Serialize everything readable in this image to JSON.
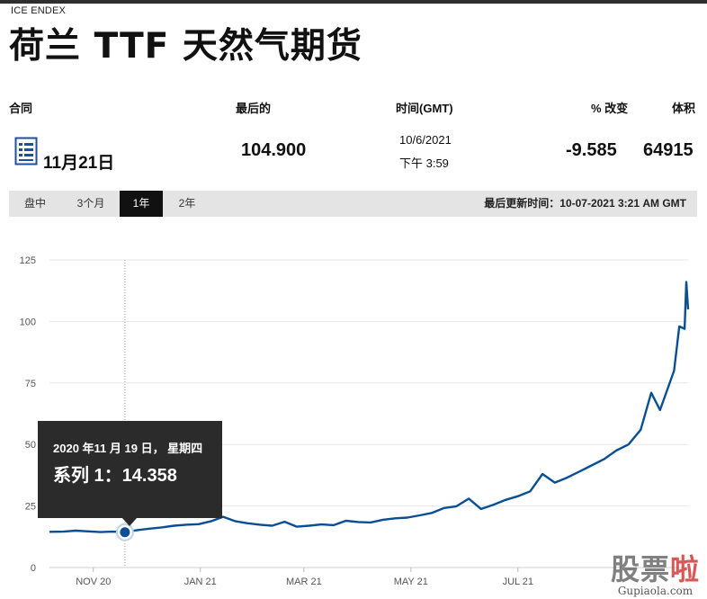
{
  "header": {
    "exchange": "ICE ENDEX",
    "title": "荷兰 TTF 天然气期货"
  },
  "table": {
    "columns": [
      "合同",
      "最后的",
      "时间(GMT)",
      "% 改变",
      "体积"
    ],
    "row": {
      "contract": "11月21日",
      "last": "104.900",
      "time_date": "10/6/2021",
      "time_clock": "下午 3:59",
      "change_pct": "-9.585",
      "volume": "64915"
    }
  },
  "tabs": {
    "items": [
      "盘中",
      "3个月",
      "1年",
      "2年"
    ],
    "active": "1年",
    "last_updated": "最后更新时间：10-07-2021 3:21 AM GMT"
  },
  "tooltip": {
    "date": "2020 年11 月 19 日， 星期四",
    "series": "系列 1：14.358"
  },
  "watermark": {
    "logo_part1": "股票",
    "logo_part2": "啦",
    "url": "Gupiaola.com"
  },
  "colors": {
    "line": "#0a4f94",
    "active_tab": "#111111",
    "tab_bar": "#e4e4e4",
    "tooltip_bg": "#2b2b2b"
  },
  "chart_data": {
    "type": "line",
    "ylim": [
      0,
      125
    ],
    "y_ticks": [
      "0",
      "25",
      "50",
      "75",
      "100",
      "125"
    ],
    "x_ticks": [
      "NOV 20",
      "JAN 21",
      "MAR 21",
      "MAY 21",
      "JUL 21"
    ],
    "x_tick_dates": [
      "2020-11-01",
      "2021-01-01",
      "2021-03-01",
      "2021-05-01",
      "2021-07-01"
    ],
    "x_range": [
      "2020-10-07",
      "2021-10-06"
    ],
    "highlight": {
      "x": "2020-11-19",
      "y": 14.358
    },
    "series": [
      {
        "x": [
          "2020-10-07",
          "2020-10-15",
          "2020-10-22",
          "2020-10-29",
          "2020-11-05",
          "2020-11-12",
          "2020-11-19",
          "2020-11-26",
          "2020-12-03",
          "2020-12-10",
          "2020-12-17",
          "2020-12-24",
          "2020-12-31",
          "2021-01-07",
          "2021-01-14",
          "2021-01-21",
          "2021-01-28",
          "2021-02-04",
          "2021-02-11",
          "2021-02-18",
          "2021-02-25",
          "2021-03-04",
          "2021-03-11",
          "2021-03-18",
          "2021-03-25",
          "2021-04-01",
          "2021-04-08",
          "2021-04-15",
          "2021-04-22",
          "2021-04-29",
          "2021-05-06",
          "2021-05-13",
          "2021-05-20",
          "2021-05-27",
          "2021-06-03",
          "2021-06-10",
          "2021-06-17",
          "2021-06-24",
          "2021-07-01",
          "2021-07-08",
          "2021-07-15",
          "2021-07-22",
          "2021-07-29",
          "2021-08-05",
          "2021-08-12",
          "2021-08-19",
          "2021-08-26",
          "2021-09-02",
          "2021-09-09",
          "2021-09-15",
          "2021-09-20",
          "2021-09-24",
          "2021-09-28",
          "2021-10-01",
          "2021-10-04",
          "2021-10-05",
          "2021-10-06"
        ],
        "values": [
          14.5,
          14.6,
          15.0,
          14.7,
          14.4,
          14.6,
          14.358,
          15.2,
          15.8,
          16.3,
          17.0,
          17.4,
          17.6,
          18.8,
          20.6,
          18.8,
          18.0,
          17.4,
          17.0,
          18.6,
          16.6,
          17.0,
          17.5,
          17.2,
          19.0,
          18.5,
          18.3,
          19.4,
          20.0,
          20.3,
          21.2,
          22.2,
          24.2,
          24.9,
          28.0,
          23.8,
          25.5,
          27.5,
          29.0,
          31.0,
          38.0,
          34.5,
          36.5,
          39.0,
          41.5,
          44.0,
          47.5,
          50.0,
          56.0,
          71.0,
          64.0,
          72.0,
          80.0,
          98.0,
          97.0,
          116.0,
          104.9
        ]
      }
    ]
  }
}
